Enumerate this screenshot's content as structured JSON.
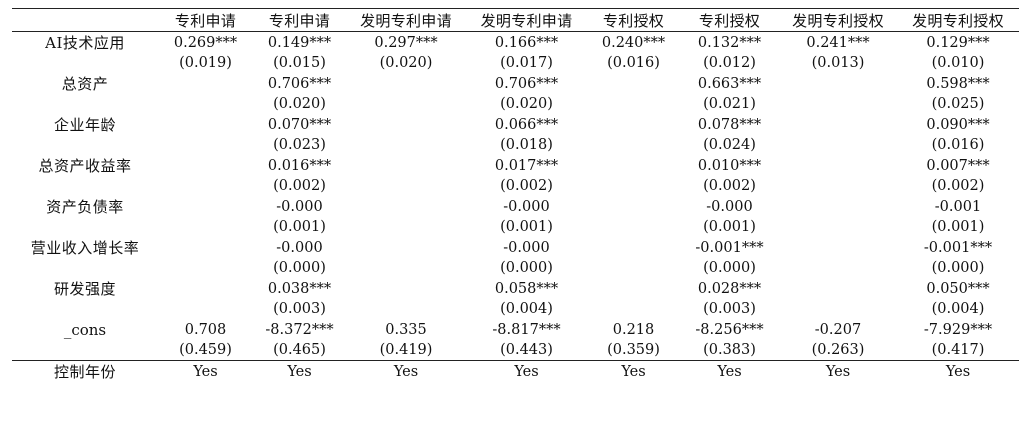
{
  "table": {
    "headers": [
      "",
      "专利申请",
      "专利申请",
      "发明专利申请",
      "发明专利申请",
      "专利授权",
      "专利授权",
      "发明专利授权",
      "发明专利授权"
    ],
    "rows": [
      {
        "label": "AI技术应用",
        "coef": [
          "0.269***",
          "0.149***",
          "0.297***",
          "0.166***",
          "0.240***",
          "0.132***",
          "0.241***",
          "0.129***"
        ],
        "se": [
          "(0.019)",
          "(0.015)",
          "(0.020)",
          "(0.017)",
          "(0.016)",
          "(0.012)",
          "(0.013)",
          "(0.010)"
        ]
      },
      {
        "label": "总资产",
        "coef": [
          "",
          "0.706***",
          "",
          "0.706***",
          "",
          "0.663***",
          "",
          "0.598***"
        ],
        "se": [
          "",
          "(0.020)",
          "",
          "(0.020)",
          "",
          "(0.021)",
          "",
          "(0.025)"
        ]
      },
      {
        "label": "企业年龄",
        "coef": [
          "",
          "0.070***",
          "",
          "0.066***",
          "",
          "0.078***",
          "",
          "0.090***"
        ],
        "se": [
          "",
          "(0.023)",
          "",
          "(0.018)",
          "",
          "(0.024)",
          "",
          "(0.016)"
        ]
      },
      {
        "label": "总资产收益率",
        "coef": [
          "",
          "0.016***",
          "",
          "0.017***",
          "",
          "0.010***",
          "",
          "0.007***"
        ],
        "se": [
          "",
          "(0.002)",
          "",
          "(0.002)",
          "",
          "(0.002)",
          "",
          "(0.002)"
        ]
      },
      {
        "label": "资产负债率",
        "coef": [
          "",
          "-0.000",
          "",
          "-0.000",
          "",
          "-0.000",
          "",
          "-0.001"
        ],
        "se": [
          "",
          "(0.001)",
          "",
          "(0.001)",
          "",
          "(0.001)",
          "",
          "(0.001)"
        ]
      },
      {
        "label": "营业收入增长率",
        "coef": [
          "",
          "-0.000",
          "",
          "-0.000",
          "",
          "-0.001***",
          "",
          "-0.001***"
        ],
        "se": [
          "",
          "(0.000)",
          "",
          "(0.000)",
          "",
          "(0.000)",
          "",
          "(0.000)"
        ]
      },
      {
        "label": "研发强度",
        "coef": [
          "",
          "0.038***",
          "",
          "0.058***",
          "",
          "0.028***",
          "",
          "0.050***"
        ],
        "se": [
          "",
          "(0.003)",
          "",
          "(0.004)",
          "",
          "(0.003)",
          "",
          "(0.004)"
        ]
      },
      {
        "label": "_cons",
        "coef": [
          "0.708",
          "-8.372***",
          "0.335",
          "-8.817***",
          "0.218",
          "-8.256***",
          "-0.207",
          "-7.929***"
        ],
        "se": [
          "(0.459)",
          "(0.465)",
          "(0.419)",
          "(0.443)",
          "(0.359)",
          "(0.383)",
          "(0.263)",
          "(0.417)"
        ]
      }
    ],
    "controls": [
      {
        "label": "控制年份",
        "values": [
          "Yes",
          "Yes",
          "Yes",
          "Yes",
          "Yes",
          "Yes",
          "Yes",
          "Yes"
        ]
      }
    ]
  }
}
